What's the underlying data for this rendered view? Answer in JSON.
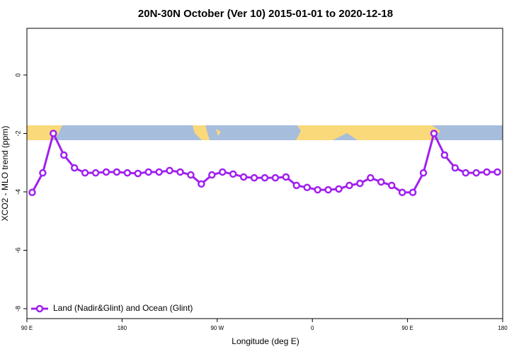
{
  "chart_data": {
    "type": "line",
    "title": "20N-30N October (Ver 10)   2015-01-01 to 2020-12-18",
    "xlabel": "Longitude (deg E)",
    "ylabel": "XCO2 - MLO trend (ppm)",
    "x": [
      95,
      105,
      115,
      125,
      135,
      145,
      155,
      165,
      175,
      185,
      195,
      205,
      215,
      225,
      235,
      245,
      255,
      265,
      275,
      285,
      295,
      305,
      315,
      325,
      335,
      345,
      355,
      365,
      375,
      385,
      395,
      405,
      415,
      425,
      435,
      445,
      455,
      465,
      475,
      485,
      495,
      505,
      515,
      525,
      535
    ],
    "series": [
      {
        "name": "Land (Nadir&Glint) and Ocean (Glint)",
        "color": "#a020f0",
        "values": [
          -4.02,
          -3.35,
          -2.0,
          -2.74,
          -3.18,
          -3.35,
          -3.35,
          -3.32,
          -3.32,
          -3.35,
          -3.37,
          -3.32,
          -3.32,
          -3.27,
          -3.32,
          -3.42,
          -3.73,
          -3.42,
          -3.32,
          -3.39,
          -3.49,
          -3.52,
          -3.52,
          -3.52,
          -3.49,
          -3.78,
          -3.85,
          -3.93,
          -3.93,
          -3.9,
          -3.78,
          -3.71,
          -3.52,
          -3.66,
          -3.78,
          -4.02,
          -4.02,
          -3.35,
          -2.0,
          -2.74,
          -3.18,
          -3.35,
          -3.35,
          -3.32,
          -3.32
        ]
      }
    ],
    "xlim": [
      90,
      540
    ],
    "xticks": [
      {
        "value": 90,
        "label": "90 E"
      },
      {
        "value": 180,
        "label": "180"
      },
      {
        "value": 270,
        "label": "90 W"
      },
      {
        "value": 360,
        "label": "0"
      },
      {
        "value": 450,
        "label": "90 E"
      },
      {
        "value": 540,
        "label": "180"
      }
    ],
    "ylim": [
      -8.34,
      1.6
    ],
    "yticks": [
      0,
      -2,
      -4,
      -6,
      -8
    ],
    "legend": "bottom-left"
  }
}
